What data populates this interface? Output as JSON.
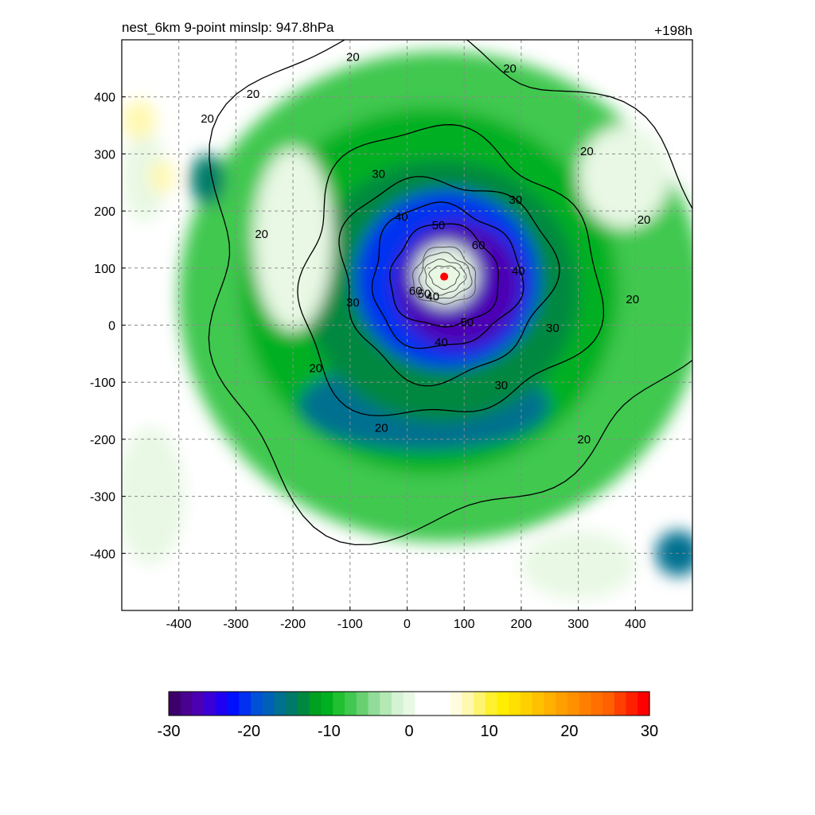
{
  "chart_data": {
    "type": "heatmap",
    "title_left": "nest_6km  9-point minslp: 947.8hPa",
    "title_right": "+198h",
    "xlim": [
      -500,
      500
    ],
    "ylim": [
      -500,
      500
    ],
    "x_ticks": [
      -400,
      -300,
      -200,
      -100,
      0,
      100,
      200,
      300,
      400
    ],
    "y_ticks": [
      -400,
      -300,
      -200,
      -100,
      0,
      100,
      200,
      300,
      400
    ],
    "grid": true,
    "grid_style": "dashed",
    "center_marker": {
      "x": 65,
      "y": 85,
      "color": "#ff0000"
    },
    "contour_levels": [
      20,
      30,
      40,
      50,
      60
    ],
    "contour_labels": [
      {
        "text": "20",
        "x": 180,
        "y": 450
      },
      {
        "text": "20",
        "x": -270,
        "y": 405
      },
      {
        "text": "20",
        "x": -350,
        "y": 362
      },
      {
        "text": "20",
        "x": -255,
        "y": 160
      },
      {
        "text": "20",
        "x": -160,
        "y": -75
      },
      {
        "text": "20",
        "x": -45,
        "y": -180
      },
      {
        "text": "20",
        "x": 315,
        "y": 305
      },
      {
        "text": "20",
        "x": 415,
        "y": 185
      },
      {
        "text": "20",
        "x": 395,
        "y": 45
      },
      {
        "text": "20",
        "x": 310,
        "y": -200
      },
      {
        "text": "20",
        "x": -95,
        "y": 470
      },
      {
        "text": "30",
        "x": -50,
        "y": 265
      },
      {
        "text": "30",
        "x": 190,
        "y": 220
      },
      {
        "text": "30",
        "x": -95,
        "y": 40
      },
      {
        "text": "30",
        "x": 255,
        "y": -5
      },
      {
        "text": "30",
        "x": 165,
        "y": -105
      },
      {
        "text": "40",
        "x": -10,
        "y": 190
      },
      {
        "text": "40",
        "x": 195,
        "y": 95
      },
      {
        "text": "40",
        "x": 60,
        "y": -30
      },
      {
        "text": "50",
        "x": 55,
        "y": 175
      },
      {
        "text": "50",
        "x": 105,
        "y": 5
      },
      {
        "text": "60",
        "x": 125,
        "y": 140
      },
      {
        "text": "60",
        "x": 15,
        "y": 60
      },
      {
        "text": "50",
        "x": 30,
        "y": 55
      },
      {
        "text": "40",
        "x": 45,
        "y": 50
      }
    ],
    "colorbar": {
      "min": -30,
      "max": 30,
      "tick_labels": [
        "-30",
        "-20",
        "-10",
        "0",
        "10",
        "20",
        "30"
      ],
      "tick_values": [
        -30,
        -20,
        -10,
        0,
        10,
        20,
        30
      ],
      "colors": [
        "#3d006a",
        "#4a0090",
        "#4b00b4",
        "#3a00d8",
        "#1f00f0",
        "#0010ff",
        "#0030f0",
        "#0050d8",
        "#0060b8",
        "#007090",
        "#007a68",
        "#008840",
        "#00a020",
        "#00b020",
        "#20c030",
        "#40c850",
        "#68d070",
        "#90dc98",
        "#b4e8b4",
        "#d4f2d4",
        "#e8f8e4",
        "#ffffff",
        "#ffffff",
        "#ffffff",
        "#fffce0",
        "#fff8b0",
        "#fff470",
        "#fff030",
        "#ffee00",
        "#ffe000",
        "#ffd000",
        "#ffc000",
        "#ffb000",
        "#ffa000",
        "#ff9000",
        "#ff8000",
        "#ff7000",
        "#ff6000",
        "#ff4000",
        "#ff2000",
        "#ff0000"
      ]
    },
    "field_blobs": [
      {
        "x": 60,
        "y": 50,
        "rx": 460,
        "ry": 430,
        "v": -7
      },
      {
        "x": 40,
        "y": 60,
        "rx": 330,
        "ry": 320,
        "v": -10
      },
      {
        "x": 30,
        "y": -140,
        "rx": 220,
        "ry": 80,
        "v": -16
      },
      {
        "x": 60,
        "y": 60,
        "rx": 240,
        "ry": 230,
        "v": -13
      },
      {
        "x": 70,
        "y": 80,
        "rx": 160,
        "ry": 155,
        "v": -20
      },
      {
        "x": 90,
        "y": 70,
        "rx": 110,
        "ry": 110,
        "v": -26
      },
      {
        "x": 68,
        "y": 88,
        "rx": 55,
        "ry": 55,
        "v": 0
      },
      {
        "x": -200,
        "y": 150,
        "rx": 70,
        "ry": 160,
        "v": 0
      },
      {
        "x": -460,
        "y": 260,
        "rx": 40,
        "ry": 80,
        "v": 0
      },
      {
        "x": 380,
        "y": 260,
        "rx": 80,
        "ry": 90,
        "v": 0
      },
      {
        "x": -450,
        "y": -300,
        "rx": 60,
        "ry": 120,
        "v": 0
      },
      {
        "x": 300,
        "y": -420,
        "rx": 100,
        "ry": 60,
        "v": 0
      },
      {
        "x": -470,
        "y": 360,
        "rx": 30,
        "ry": 35,
        "v": 8
      },
      {
        "x": -430,
        "y": 260,
        "rx": 22,
        "ry": 30,
        "v": 8
      },
      {
        "x": -350,
        "y": 255,
        "rx": 30,
        "ry": 45,
        "v": -14
      },
      {
        "x": 475,
        "y": -400,
        "rx": 40,
        "ry": 40,
        "v": -16
      }
    ]
  }
}
